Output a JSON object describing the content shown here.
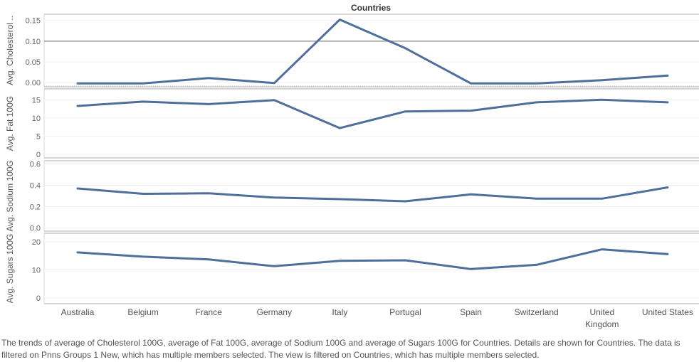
{
  "chart_data": {
    "type": "line",
    "title": "Countries",
    "categories": [
      "Australia",
      "Belgium",
      "France",
      "Germany",
      "Italy",
      "Portugal",
      "Spain",
      "Switzerland",
      "United Kingdom",
      "United States"
    ],
    "category_display": [
      [
        "Australia"
      ],
      [
        "Belgium"
      ],
      [
        "France"
      ],
      [
        "Germany"
      ],
      [
        "Italy"
      ],
      [
        "Portugal"
      ],
      [
        "Spain"
      ],
      [
        "Switzerland"
      ],
      [
        "United",
        "Kingdom"
      ],
      [
        "United States"
      ]
    ],
    "line_color": "#4e6f9a",
    "grid": true,
    "panels": [
      {
        "ylabel": "Avg. Cholesterol ..",
        "ylim": [
          -0.01,
          0.165
        ],
        "ticks": [
          0.15,
          0.1,
          0.05,
          0.0
        ],
        "tick_labels": [
          "0.15",
          "0.10",
          "0.05",
          "0.00"
        ],
        "reference_line": 0.1,
        "values": [
          -0.002,
          -0.002,
          0.011,
          -0.001,
          0.152,
          0.083,
          -0.002,
          -0.002,
          0.006,
          0.017
        ]
      },
      {
        "ylabel": "Avg. Fat 100G",
        "ylim": [
          -1,
          18
        ],
        "ticks": [
          15,
          10,
          5,
          0
        ],
        "tick_labels": [
          "15",
          "10",
          "5",
          "0"
        ],
        "values": [
          13.3,
          14.5,
          13.8,
          14.9,
          7.2,
          11.8,
          12.0,
          14.3,
          15.0,
          14.3
        ]
      },
      {
        "ylabel": "Avg. Sodium 100G",
        "ylim": [
          -0.03,
          0.63
        ],
        "ticks": [
          0.6,
          0.4,
          0.2,
          0.0
        ],
        "tick_labels": [
          "0.6",
          "0.4",
          "0.2",
          "0.0"
        ],
        "values": [
          0.37,
          0.32,
          0.325,
          0.285,
          0.27,
          0.25,
          0.315,
          0.275,
          0.275,
          0.38
        ]
      },
      {
        "ylabel": "Avg. Sugars 100G",
        "ylim": [
          -2,
          23
        ],
        "ticks": [
          20,
          10,
          0
        ],
        "tick_labels": [
          "20",
          "10",
          "0"
        ],
        "values": [
          16.2,
          14.7,
          13.7,
          11.3,
          13.2,
          13.4,
          10.3,
          11.8,
          17.3,
          15.6
        ]
      }
    ]
  },
  "caption": "The trends of average of Cholesterol 100G, average of Fat 100G, average of Sodium 100G and average of Sugars 100G for Countries.  Details are shown for Countries. The data is filtered on Pnns Groups 1 New, which has multiple members selected. The view is filtered on Countries, which has multiple members selected."
}
